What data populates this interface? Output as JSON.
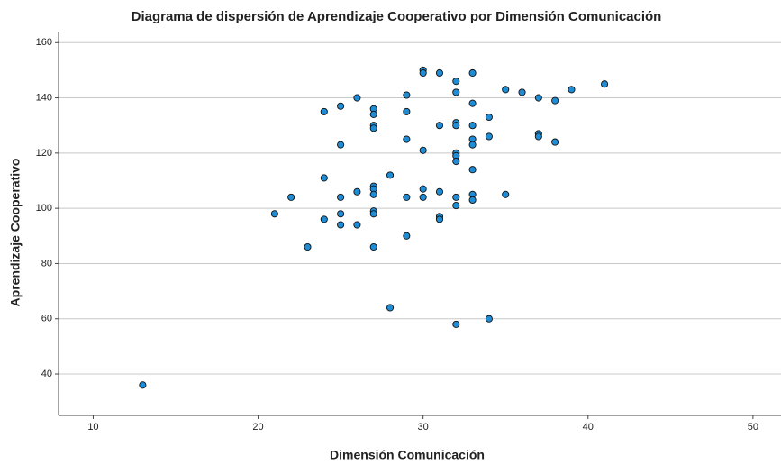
{
  "chart_data": {
    "type": "scatter",
    "title": "Diagrama de dispersión de Aprendizaje Cooperativo por Dimensión Comunicación",
    "x_label": "Dimensión Comunicación",
    "y_label": "Aprendizaje Cooperativo",
    "x": [
      13,
      21,
      22,
      23,
      24,
      24,
      24,
      25,
      25,
      25,
      25,
      25,
      26,
      26,
      26,
      27,
      27,
      27,
      27,
      27,
      27,
      27,
      27,
      27,
      27,
      28,
      28,
      29,
      29,
      29,
      29,
      29,
      30,
      30,
      30,
      30,
      30,
      31,
      31,
      31,
      31,
      31,
      32,
      32,
      32,
      32,
      32,
      32,
      32,
      32,
      32,
      32,
      33,
      33,
      33,
      33,
      33,
      33,
      33,
      33,
      34,
      34,
      34,
      35,
      35,
      36,
      37,
      37,
      37,
      38,
      38,
      39,
      41
    ],
    "y": [
      36,
      98,
      104,
      86,
      135,
      111,
      96,
      137,
      123,
      104,
      98,
      94,
      140,
      106,
      94,
      136,
      134,
      130,
      129,
      108,
      107,
      105,
      99,
      98,
      86,
      112,
      64,
      141,
      135,
      125,
      104,
      90,
      150,
      149,
      121,
      107,
      104,
      149,
      130,
      106,
      97,
      96,
      146,
      142,
      131,
      130,
      120,
      119,
      117,
      104,
      101,
      58,
      149,
      138,
      130,
      125,
      123,
      114,
      105,
      103,
      133,
      126,
      60,
      143,
      105,
      142,
      140,
      127,
      126,
      139,
      124,
      143,
      145
    ],
    "color": "#1f8dd6",
    "xlim": [
      7.9,
      51.7
    ],
    "ylim": [
      25,
      164
    ],
    "xticks": [
      10,
      20,
      30,
      40,
      50
    ],
    "yticks": [
      40,
      60,
      80,
      100,
      120,
      140,
      160
    ],
    "grid": true
  }
}
